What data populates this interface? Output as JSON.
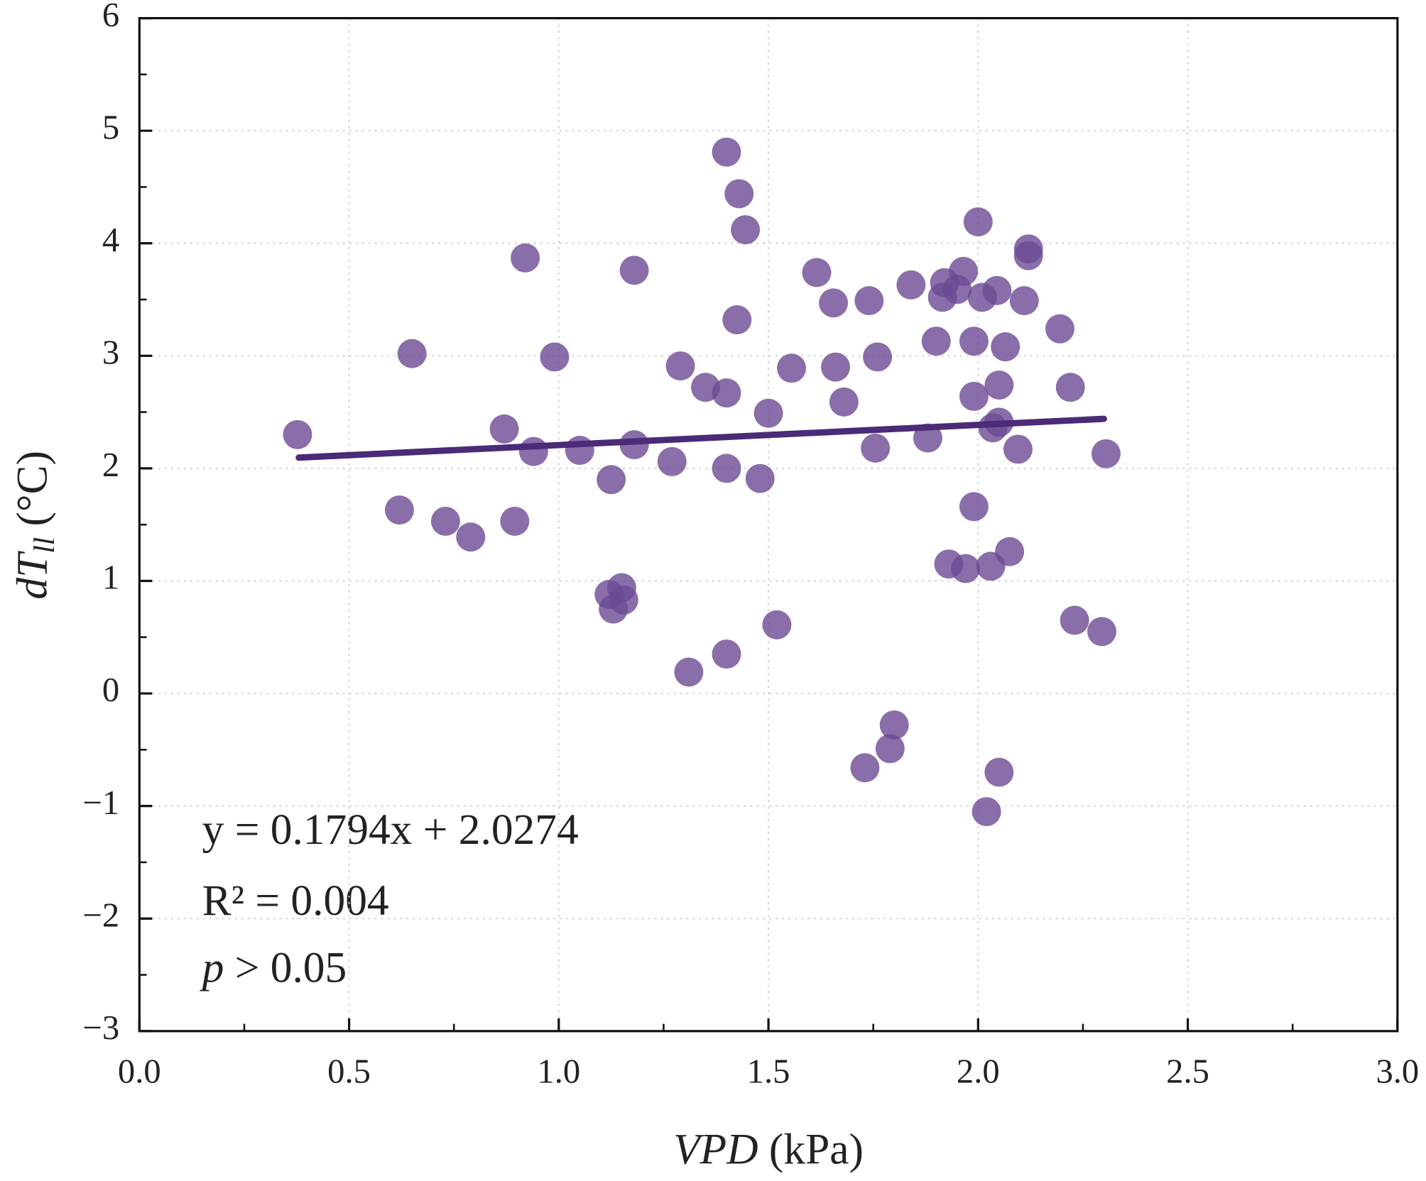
{
  "chart_data": {
    "type": "scatter",
    "xlabel": [
      "VPD",
      " (kPa)"
    ],
    "ylabel": [
      "dT",
      "ll",
      " (°C)"
    ],
    "annotations": [
      "y = 0.1794x + 2.0274",
      "R² = 0.004",
      [
        "p",
        " > 0.05"
      ]
    ],
    "fit": {
      "slope": 0.1794,
      "intercept": 2.0274,
      "x": [
        0.38,
        2.3
      ],
      "color": "#4b2a78"
    },
    "color": "#6b4a93",
    "grid": true,
    "xlim": [
      0,
      3
    ],
    "ylim": [
      -3,
      6
    ],
    "xticks": [
      {
        "value": 0,
        "label": "0.0"
      },
      0.5,
      {
        "value": 1,
        "label": "1.0"
      },
      1.5,
      {
        "value": 2,
        "label": "2.0"
      },
      2.5,
      {
        "value": 3,
        "label": "3.0"
      }
    ],
    "yticks": [
      {
        "value": -3,
        "label": "−3"
      },
      {
        "value": -2,
        "label": "−2"
      },
      {
        "value": -1,
        "label": "−1"
      },
      0,
      1,
      2,
      3,
      4,
      5,
      6
    ],
    "x": [
      0.377,
      0.65,
      0.62,
      0.73,
      0.79,
      0.87,
      0.895,
      0.92,
      0.94,
      0.99,
      1.05,
      1.125,
      1.12,
      1.13,
      1.15,
      1.155,
      1.18,
      1.18,
      1.27,
      1.29,
      1.31,
      1.35,
      1.4,
      1.4,
      1.4,
      1.4,
      1.43,
      1.425,
      1.445,
      1.48,
      1.5,
      1.52,
      1.555,
      1.615,
      1.655,
      1.66,
      1.68,
      1.73,
      1.74,
      1.755,
      1.76,
      1.79,
      1.8,
      1.84,
      1.88,
      1.9,
      1.915,
      1.92,
      1.93,
      1.95,
      1.965,
      1.97,
      1.99,
      1.99,
      1.99,
      2.0,
      2.01,
      2.02,
      2.03,
      2.035,
      2.045,
      2.05,
      2.05,
      2.05,
      2.065,
      2.075,
      2.095,
      2.11,
      2.12,
      2.12,
      2.195,
      2.22,
      2.23,
      2.295,
      2.305
    ],
    "values": [
      2.3,
      3.02,
      1.63,
      1.53,
      1.39,
      2.35,
      1.53,
      3.87,
      2.15,
      2.99,
      2.16,
      1.9,
      0.88,
      0.75,
      0.94,
      0.83,
      3.76,
      2.21,
      2.06,
      2.91,
      0.19,
      2.72,
      2.0,
      2.67,
      0.35,
      4.81,
      4.44,
      3.32,
      4.12,
      1.91,
      2.49,
      0.61,
      2.89,
      3.74,
      3.47,
      2.9,
      2.59,
      -0.66,
      3.49,
      2.18,
      2.99,
      -0.49,
      -0.28,
      3.63,
      2.27,
      3.13,
      3.52,
      3.65,
      1.15,
      3.59,
      3.75,
      1.11,
      1.66,
      2.64,
      3.13,
      4.19,
      3.52,
      -1.05,
      1.13,
      2.36,
      3.58,
      2.41,
      2.74,
      -0.7,
      3.08,
      1.26,
      2.17,
      3.49,
      3.89,
      3.95,
      3.24,
      2.72,
      0.65,
      0.55,
      2.13
    ]
  }
}
